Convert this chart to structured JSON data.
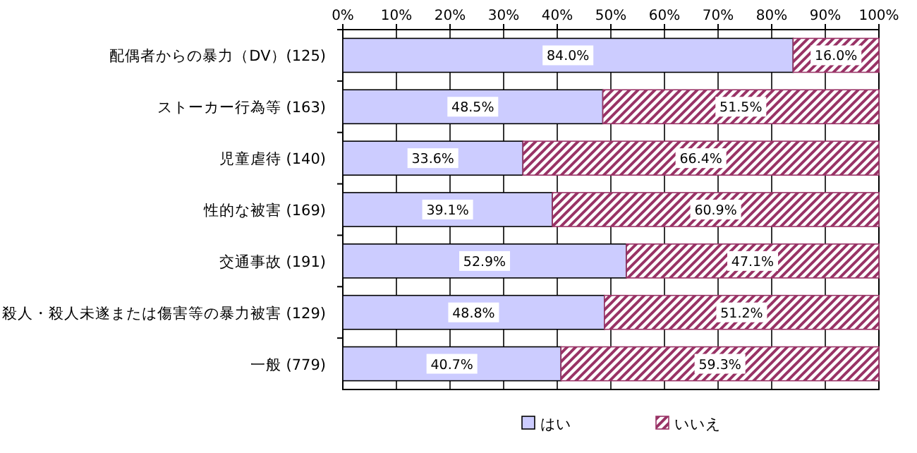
{
  "chart_data": {
    "type": "bar",
    "orientation": "horizontal",
    "stacked": true,
    "categories": [
      "配偶者からの暴力（DV）(125)",
      "ストーカー行為等 (163)",
      "児童虐待 (140)",
      "性的な被害 (169)",
      "交通事故 (191)",
      "殺人・殺人未遂または傷害等の暴力被害 (129)",
      "一般 (779)"
    ],
    "series": [
      {
        "name": "はい",
        "color": "#ccccff",
        "values": [
          84.0,
          48.5,
          33.6,
          39.1,
          52.9,
          48.8,
          40.7
        ],
        "value_labels": [
          "84.0%",
          "48.5%",
          "33.6%",
          "39.1%",
          "52.9%",
          "48.8%",
          "40.7%"
        ]
      },
      {
        "name": "いいえ",
        "color": "#993366",
        "values": [
          16.0,
          51.5,
          66.4,
          60.9,
          47.1,
          51.2,
          59.3
        ],
        "value_labels": [
          "16.0%",
          "51.5%",
          "66.4%",
          "60.9%",
          "47.1%",
          "51.2%",
          "59.3%"
        ]
      }
    ],
    "xlim": [
      0,
      100
    ],
    "xticks": [
      {
        "value": 0,
        "label": "0%"
      },
      {
        "value": 10,
        "label": "10%"
      },
      {
        "value": 20,
        "label": "20%"
      },
      {
        "value": 30,
        "label": "30%"
      },
      {
        "value": 40,
        "label": "40%"
      },
      {
        "value": 50,
        "label": "50%"
      },
      {
        "value": 60,
        "label": "60%"
      },
      {
        "value": 70,
        "label": "70%"
      },
      {
        "value": 80,
        "label": "80%"
      },
      {
        "value": 90,
        "label": "90%"
      },
      {
        "value": 100,
        "label": "100%"
      }
    ],
    "grid": "x",
    "legend": "bottom"
  }
}
